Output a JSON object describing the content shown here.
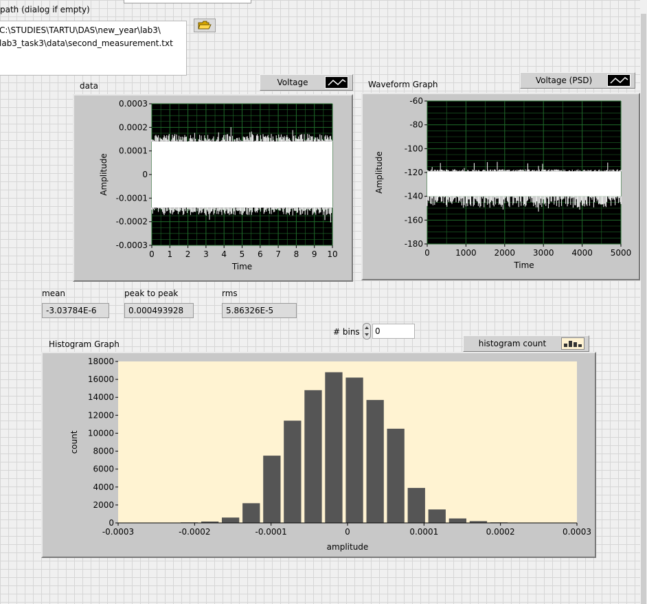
{
  "path_control": {
    "label": "path (dialog if empty)",
    "line1": "C:\\STUDIES\\TARTU\\DAS\\new_year\\lab3\\",
    "line2": "lab3_task3\\data\\second_measurement.txt"
  },
  "data_graph": {
    "label": "data",
    "legend": "Voltage",
    "xlabel": "Time",
    "ylabel": "Amplitude",
    "xticks": [
      "0",
      "1",
      "2",
      "3",
      "4",
      "5",
      "6",
      "7",
      "8",
      "9",
      "10"
    ],
    "yticks": [
      "0.0003",
      "0.0002",
      "0.0001",
      "0",
      "-0.0001",
      "-0.0002",
      "-0.0003"
    ]
  },
  "psd_graph": {
    "label": "Waveform Graph",
    "legend": "Voltage (PSD)",
    "xlabel": "Time",
    "ylabel": "Amplitude",
    "xticks": [
      "0",
      "1000",
      "2000",
      "3000",
      "4000",
      "5000"
    ],
    "yticks": [
      "-60",
      "-80",
      "-100",
      "-120",
      "-140",
      "-160",
      "-180"
    ]
  },
  "stats": {
    "mean_label": "mean",
    "mean_value": "-3.03784E-6",
    "p2p_label": "peak to peak",
    "p2p_value": "0.000493928",
    "rms_label": "rms",
    "rms_value": "5.86326E-5"
  },
  "bins": {
    "label": "# bins",
    "value": "0"
  },
  "histogram": {
    "label": "Histogram Graph",
    "legend": "histogram count"
  },
  "colors": {
    "plot_black": "#000000",
    "grid_green": "#1f6b2a",
    "hist_bg": "#fff3d2",
    "bar": "#555555",
    "frame": "#c8c8c8"
  },
  "chart_data": [
    {
      "type": "line",
      "title": "data",
      "series": [
        {
          "name": "Voltage"
        }
      ],
      "xlabel": "Time",
      "ylabel": "Amplitude",
      "xlim": [
        0,
        10
      ],
      "ylim": [
        -0.0003,
        0.0003
      ],
      "x": [
        0,
        10
      ],
      "envelope_upper": 0.00018,
      "envelope_lower": -0.00018,
      "dense_core": [
        -0.00014,
        0.00014
      ],
      "grid": true
    },
    {
      "type": "line",
      "title": "Waveform Graph",
      "series": [
        {
          "name": "Voltage (PSD)"
        }
      ],
      "xlabel": "Time",
      "ylabel": "Amplitude",
      "xlim": [
        0,
        5000
      ],
      "ylim": [
        -180,
        -60
      ],
      "envelope_upper": -117,
      "envelope_lower": -152,
      "dense_core": [
        -140,
        -119
      ],
      "grid": true
    },
    {
      "type": "bar",
      "title": "Histogram Graph",
      "series": [
        {
          "name": "histogram count"
        }
      ],
      "xlabel": "amplitude",
      "ylabel": "count",
      "xlim": [
        -0.0003,
        0.0003
      ],
      "ylim": [
        0,
        18000
      ],
      "xticks": [
        "-0.0003",
        "-0.0002",
        "-0.0001",
        "0",
        "0.0001",
        "0.0002",
        "0.0003"
      ],
      "yticks": [
        "0",
        "2000",
        "4000",
        "6000",
        "8000",
        "10000",
        "12000",
        "14000",
        "16000",
        "18000"
      ],
      "bin_centers": [
        -0.000234,
        -0.000207,
        -0.00018,
        -0.000153,
        -0.000126,
        -9.9e-05,
        -7.2e-05,
        -4.5e-05,
        -1.8e-05,
        9e-06,
        3.6e-05,
        6.3e-05,
        9e-05,
        0.000117,
        0.000144,
        0.000171,
        0.000198,
        0.000225
      ],
      "values": [
        30,
        60,
        150,
        600,
        2200,
        7500,
        11400,
        14800,
        16800,
        16200,
        13700,
        10500,
        3900,
        1500,
        500,
        200,
        60,
        20
      ]
    }
  ]
}
